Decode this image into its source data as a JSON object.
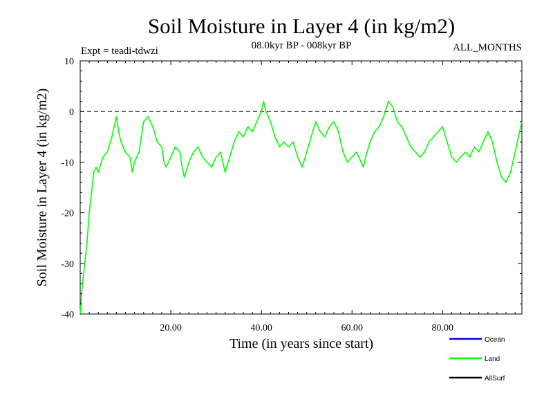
{
  "chart_data": {
    "type": "line",
    "title": "Soil Moisture in Layer 4 (in kg/m2)",
    "subtitle_left": "Expt = teadi-tdwzi",
    "subtitle_center": "08.0kyr BP - 008kyr BP",
    "subtitle_right": "ALL_MONTHS",
    "xlabel": "Time (in years since start)",
    "ylabel": "Soil Moisture in Layer 4 (in kg/m2)",
    "xlim": [
      0,
      97.5
    ],
    "ylim": [
      -40,
      10
    ],
    "x_ticks": [
      20,
      40,
      60,
      80
    ],
    "x_tick_labels": [
      "20.00",
      "40.00",
      "60.00",
      "80.00"
    ],
    "y_ticks": [
      10,
      0,
      -10,
      -20,
      -30,
      -40
    ],
    "y_tick_labels": [
      "10",
      "0",
      "-10",
      "-20",
      "-30",
      "-40"
    ],
    "reference_line": {
      "y": 0,
      "style": "dashed"
    },
    "legend": [
      {
        "name": "Ocean",
        "color": "#0000ff"
      },
      {
        "name": "Land",
        "color": "#00ff00"
      },
      {
        "name": "AllSurf",
        "color": "#000000"
      }
    ],
    "series": [
      {
        "name": "Land",
        "color": "#00ff00",
        "points": [
          [
            0,
            -40
          ],
          [
            0.5,
            -34
          ],
          [
            1,
            -30
          ],
          [
            1.5,
            -26
          ],
          [
            2,
            -20
          ],
          [
            2.5,
            -16
          ],
          [
            3,
            -12
          ],
          [
            3.5,
            -11
          ],
          [
            4,
            -12
          ],
          [
            5,
            -9
          ],
          [
            6,
            -8
          ],
          [
            7,
            -5
          ],
          [
            7.5,
            -3
          ],
          [
            8,
            -1
          ],
          [
            8.5,
            -4
          ],
          [
            9,
            -6
          ],
          [
            10,
            -8
          ],
          [
            11,
            -9
          ],
          [
            11.5,
            -12
          ],
          [
            12,
            -10
          ],
          [
            13,
            -8
          ],
          [
            13.5,
            -5
          ],
          [
            14,
            -2
          ],
          [
            15,
            -1
          ],
          [
            16,
            -3
          ],
          [
            17,
            -6
          ],
          [
            18,
            -7
          ],
          [
            18.5,
            -10
          ],
          [
            19,
            -11
          ],
          [
            20,
            -9
          ],
          [
            21,
            -7
          ],
          [
            22,
            -8
          ],
          [
            22.5,
            -11
          ],
          [
            23,
            -13
          ],
          [
            24,
            -10
          ],
          [
            25,
            -8
          ],
          [
            26,
            -7
          ],
          [
            27,
            -9
          ],
          [
            28,
            -10
          ],
          [
            29,
            -11
          ],
          [
            30,
            -9
          ],
          [
            31,
            -8
          ],
          [
            31.5,
            -10
          ],
          [
            32,
            -12
          ],
          [
            33,
            -9
          ],
          [
            34,
            -6
          ],
          [
            35,
            -4
          ],
          [
            36,
            -5
          ],
          [
            37,
            -3
          ],
          [
            38,
            -4
          ],
          [
            39,
            -2
          ],
          [
            40,
            0
          ],
          [
            40.5,
            2
          ],
          [
            41,
            0
          ],
          [
            42,
            -2
          ],
          [
            43,
            -5
          ],
          [
            44,
            -7
          ],
          [
            45,
            -6
          ],
          [
            46,
            -7
          ],
          [
            47,
            -6
          ],
          [
            48,
            -9
          ],
          [
            49,
            -11
          ],
          [
            50,
            -8
          ],
          [
            51,
            -5
          ],
          [
            52,
            -2
          ],
          [
            53,
            -4
          ],
          [
            54,
            -5
          ],
          [
            55,
            -3
          ],
          [
            56,
            -2
          ],
          [
            57,
            -4
          ],
          [
            58,
            -8
          ],
          [
            59,
            -10
          ],
          [
            60,
            -9
          ],
          [
            61,
            -8
          ],
          [
            62,
            -10
          ],
          [
            62.5,
            -11
          ],
          [
            63,
            -9
          ],
          [
            64,
            -6
          ],
          [
            65,
            -4
          ],
          [
            66,
            -3
          ],
          [
            67,
            -1
          ],
          [
            68,
            2
          ],
          [
            69,
            1
          ],
          [
            70,
            -2
          ],
          [
            71,
            -3
          ],
          [
            72,
            -5
          ],
          [
            73,
            -7
          ],
          [
            74,
            -8
          ],
          [
            75,
            -9
          ],
          [
            76,
            -8
          ],
          [
            77,
            -6
          ],
          [
            78,
            -5
          ],
          [
            79,
            -4
          ],
          [
            80,
            -3
          ],
          [
            81,
            -6
          ],
          [
            82,
            -9
          ],
          [
            83,
            -10
          ],
          [
            84,
            -9
          ],
          [
            85,
            -8
          ],
          [
            86,
            -9
          ],
          [
            87,
            -7
          ],
          [
            88,
            -8
          ],
          [
            89,
            -6
          ],
          [
            90,
            -4
          ],
          [
            91,
            -6
          ],
          [
            92,
            -10
          ],
          [
            93,
            -13
          ],
          [
            94,
            -14
          ],
          [
            95,
            -12
          ],
          [
            96,
            -8
          ],
          [
            97,
            -4
          ],
          [
            97.5,
            -2
          ]
        ]
      }
    ]
  }
}
